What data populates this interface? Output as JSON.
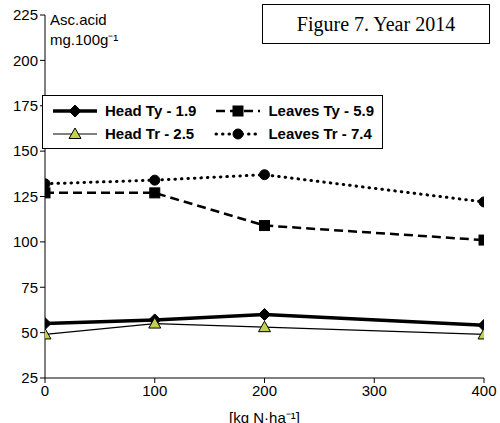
{
  "chart_data": {
    "type": "line",
    "title": "Figure 7. Year 2014",
    "y_label": "Asc.acid mg.100g⁻¹",
    "x_label": "[kg N·ha⁻¹]",
    "x": [
      0,
      100,
      200,
      400
    ],
    "series": [
      {
        "name": "Head Ty - 1.9",
        "color": "#000000",
        "marker": "diamond",
        "line_style": "bold",
        "values": [
          55,
          57,
          60,
          54
        ]
      },
      {
        "name": "Leaves Ty - 5.9",
        "color": "#000000",
        "marker": "square",
        "line_style": "dashed",
        "values": [
          127,
          127,
          109,
          101
        ]
      },
      {
        "name": "Head Tr - 2.5",
        "color": "#000000",
        "marker": "triangle",
        "line_style": "solid",
        "values": [
          49,
          55,
          53,
          49
        ]
      },
      {
        "name": "Leaves Tr - 7.4",
        "color": "#000000",
        "marker": "circle",
        "line_style": "dotted",
        "values": [
          132,
          134,
          137,
          122
        ]
      }
    ],
    "xlim": [
      0,
      400
    ],
    "xticks": [
      0,
      100,
      200,
      300,
      400
    ],
    "ylim": [
      25,
      225
    ],
    "yticks": [
      25,
      50,
      75,
      100,
      125,
      150,
      175,
      200,
      225
    ],
    "grid": false,
    "legend": "upper left"
  }
}
